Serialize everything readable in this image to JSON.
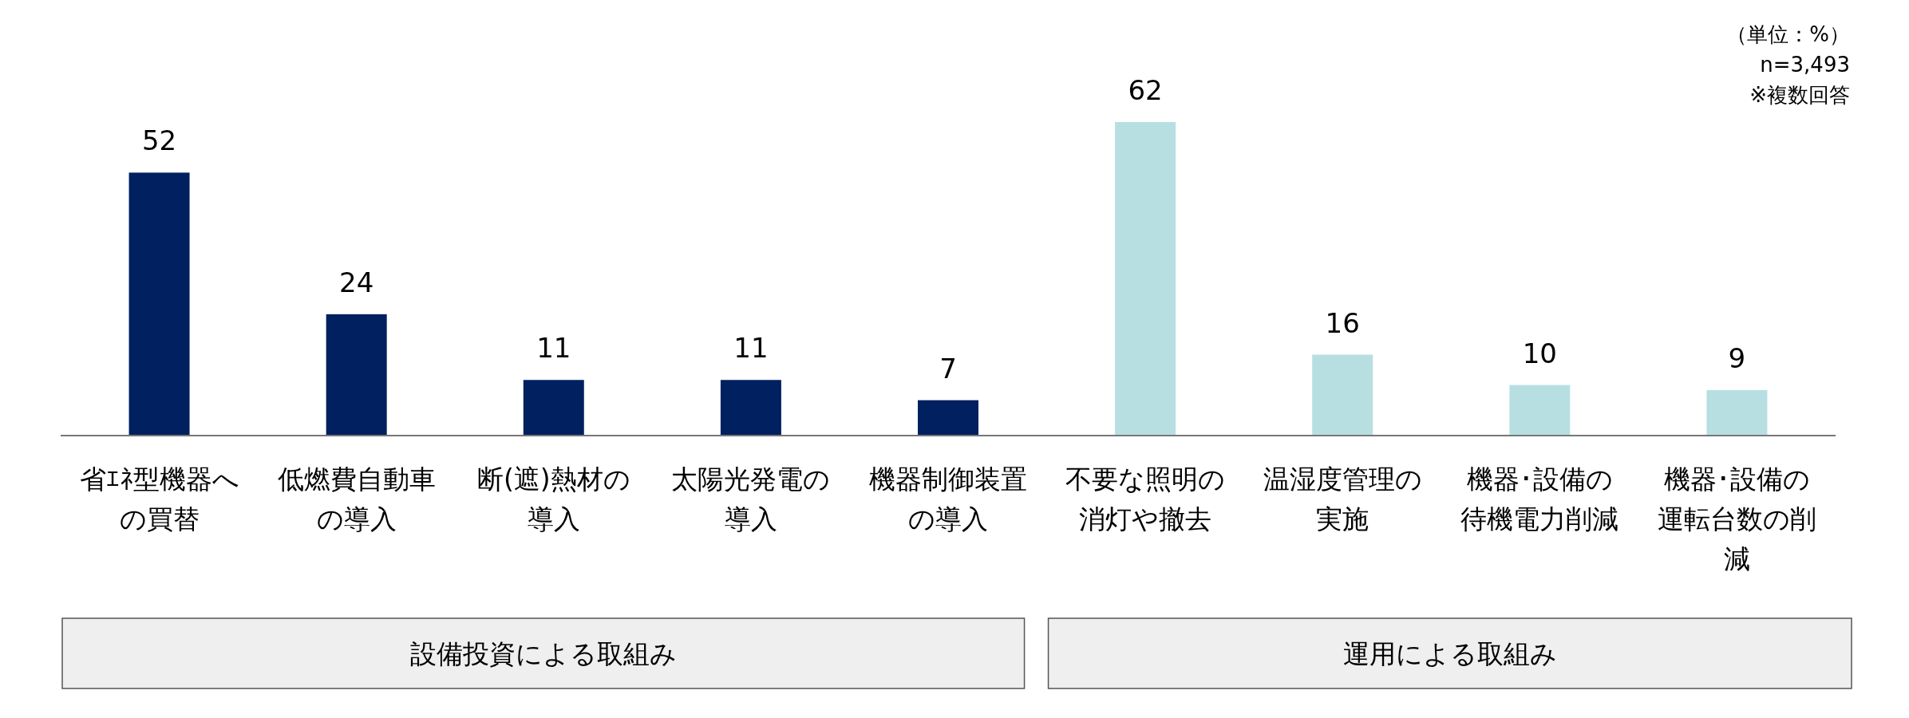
{
  "chart_data": {
    "type": "bar",
    "categories": [
      "省ｴﾈ型機器への買替",
      "低燃費自動車の導入",
      "断(遮)熱材の導入",
      "太陽光発電の導入",
      "機器制御装置の導入",
      "不要な照明の消灯や撤去",
      "温湿度管理の実施",
      "機器･設備の待機電力削減",
      "機器･設備の運転台数の削減"
    ],
    "values": [
      52,
      24,
      11,
      11,
      7,
      62,
      16,
      10,
      9
    ],
    "colors": [
      "#002060",
      "#002060",
      "#002060",
      "#002060",
      "#002060",
      "#b7dfe2",
      "#b7dfe2",
      "#b7dfe2",
      "#b7dfe2"
    ],
    "data_labels": true,
    "annotations": [
      "（単位：%）",
      "n=3,493",
      "※複数回答",
      "設備投資による取組み",
      "運用による取組み"
    ]
  }
}
